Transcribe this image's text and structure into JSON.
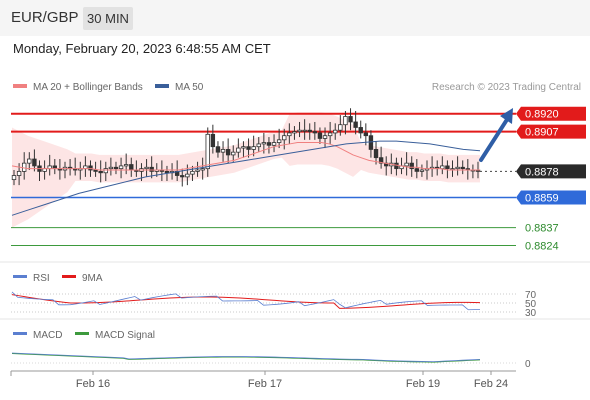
{
  "header": {
    "symbol": "EUR/GBP",
    "timeframe": "30 MIN",
    "datetime": "Monday, February 20, 2023 6:48:55 AM CET"
  },
  "main_chart": {
    "legend": [
      {
        "label": "MA 20 + Bollinger Bands",
        "color": "#f08080"
      },
      {
        "label": "MA 50",
        "color": "#3a5f9a"
      }
    ],
    "attribution": "Research © 2023 Trading Central",
    "levels": [
      {
        "value": "0.8920",
        "kind": "resistance",
        "color": "#e21b1b"
      },
      {
        "value": "0.8907",
        "kind": "resistance",
        "color": "#e21b1b"
      },
      {
        "value": "0.8878",
        "kind": "current",
        "color": "#2a2a2a"
      },
      {
        "value": "0.8859",
        "kind": "pivot",
        "color": "#2f6ad9"
      },
      {
        "value": "0.8837",
        "kind": "support",
        "color": "#3d9a3d"
      },
      {
        "value": "0.8824",
        "kind": "support",
        "color": "#3d9a3d"
      }
    ],
    "arrow_direction": "up"
  },
  "rsi_panel": {
    "legend": [
      {
        "label": "RSI",
        "color": "#5b7fd0"
      },
      {
        "label": "9MA",
        "color": "#e21b1b"
      }
    ],
    "levels": [
      "70",
      "50",
      "30"
    ]
  },
  "macd_panel": {
    "legend": [
      {
        "label": "MACD",
        "color": "#5b7fd0"
      },
      {
        "label": "MACD Signal",
        "color": "#3d9a3d"
      }
    ],
    "zero_label": "0"
  },
  "x_axis": {
    "labels": [
      "Feb 16",
      "Feb 17",
      "Feb 19",
      "Feb 24"
    ]
  },
  "chart_data": {
    "type": "candlestick",
    "price_range": [
      0.8812,
      0.893
    ],
    "x_ticks": [
      "Feb 16",
      "Feb 17",
      "Feb 19",
      "Feb 24"
    ],
    "close_series": [
      0.8875,
      0.8878,
      0.8884,
      0.8887,
      0.8882,
      0.8878,
      0.888,
      0.8882,
      0.888,
      0.8879,
      0.8881,
      0.888,
      0.8879,
      0.888,
      0.8882,
      0.8879,
      0.8878,
      0.8877,
      0.888,
      0.8881,
      0.888,
      0.8882,
      0.8883,
      0.8879,
      0.8878,
      0.888,
      0.8881,
      0.8878,
      0.8879,
      0.8878,
      0.8877,
      0.8878,
      0.8875,
      0.8874,
      0.8876,
      0.8878,
      0.8879,
      0.888,
      0.8905,
      0.8896,
      0.8892,
      0.8894,
      0.889,
      0.8892,
      0.8895,
      0.8896,
      0.8894,
      0.8896,
      0.8898,
      0.8899,
      0.8897,
      0.8899,
      0.8901,
      0.8904,
      0.8906,
      0.8907,
      0.8908,
      0.8908,
      0.8907,
      0.8906,
      0.8902,
      0.8904,
      0.8906,
      0.8908,
      0.8912,
      0.8918,
      0.8914,
      0.891,
      0.8906,
      0.8904,
      0.8894,
      0.8888,
      0.8884,
      0.8882,
      0.8884,
      0.888,
      0.8882,
      0.8884,
      0.888,
      0.8878,
      0.8879,
      0.888,
      0.8881,
      0.888,
      0.8882,
      0.888,
      0.888,
      0.8881,
      0.888,
      0.8879,
      0.8879,
      0.8878
    ],
    "ma20": [
      0.8882,
      0.8881,
      0.888,
      0.888,
      0.888,
      0.888,
      0.888,
      0.888,
      0.888,
      0.888,
      0.888,
      0.8879,
      0.8879,
      0.8879,
      0.8879,
      0.8879,
      0.8879,
      0.8879,
      0.8879,
      0.8879,
      0.8879,
      0.8879,
      0.888,
      0.8881,
      0.8882,
      0.8883,
      0.8884,
      0.8885,
      0.8886,
      0.8888,
      0.889,
      0.8892,
      0.8894,
      0.8896,
      0.8897,
      0.8898,
      0.8899,
      0.8899,
      0.8899,
      0.8899,
      0.8898,
      0.8896,
      0.8893,
      0.889,
      0.8888,
      0.8886,
      0.8885,
      0.8884,
      0.8883,
      0.8882,
      0.8881,
      0.8881,
      0.888,
      0.888,
      0.888,
      0.8879,
      0.8879,
      0.8879,
      0.8879,
      0.8879
    ],
    "ma50": [
      0.8846,
      0.885,
      0.8854,
      0.8858,
      0.8862,
      0.8865,
      0.8868,
      0.8871,
      0.8874,
      0.8876,
      0.8878,
      0.888,
      0.8882,
      0.8884,
      0.8886,
      0.8888,
      0.889,
      0.8892,
      0.8894,
      0.8896,
      0.8898,
      0.8899,
      0.89,
      0.89,
      0.8899,
      0.8898,
      0.8896,
      0.8894,
      0.8893
    ],
    "levels": {
      "resistance_2": 0.892,
      "resistance_1": 0.8907,
      "last": 0.8878,
      "pivot": 0.8859,
      "support_1": 0.8837,
      "support_2": 0.8824
    },
    "rsi_levels": [
      70,
      50,
      30
    ]
  }
}
